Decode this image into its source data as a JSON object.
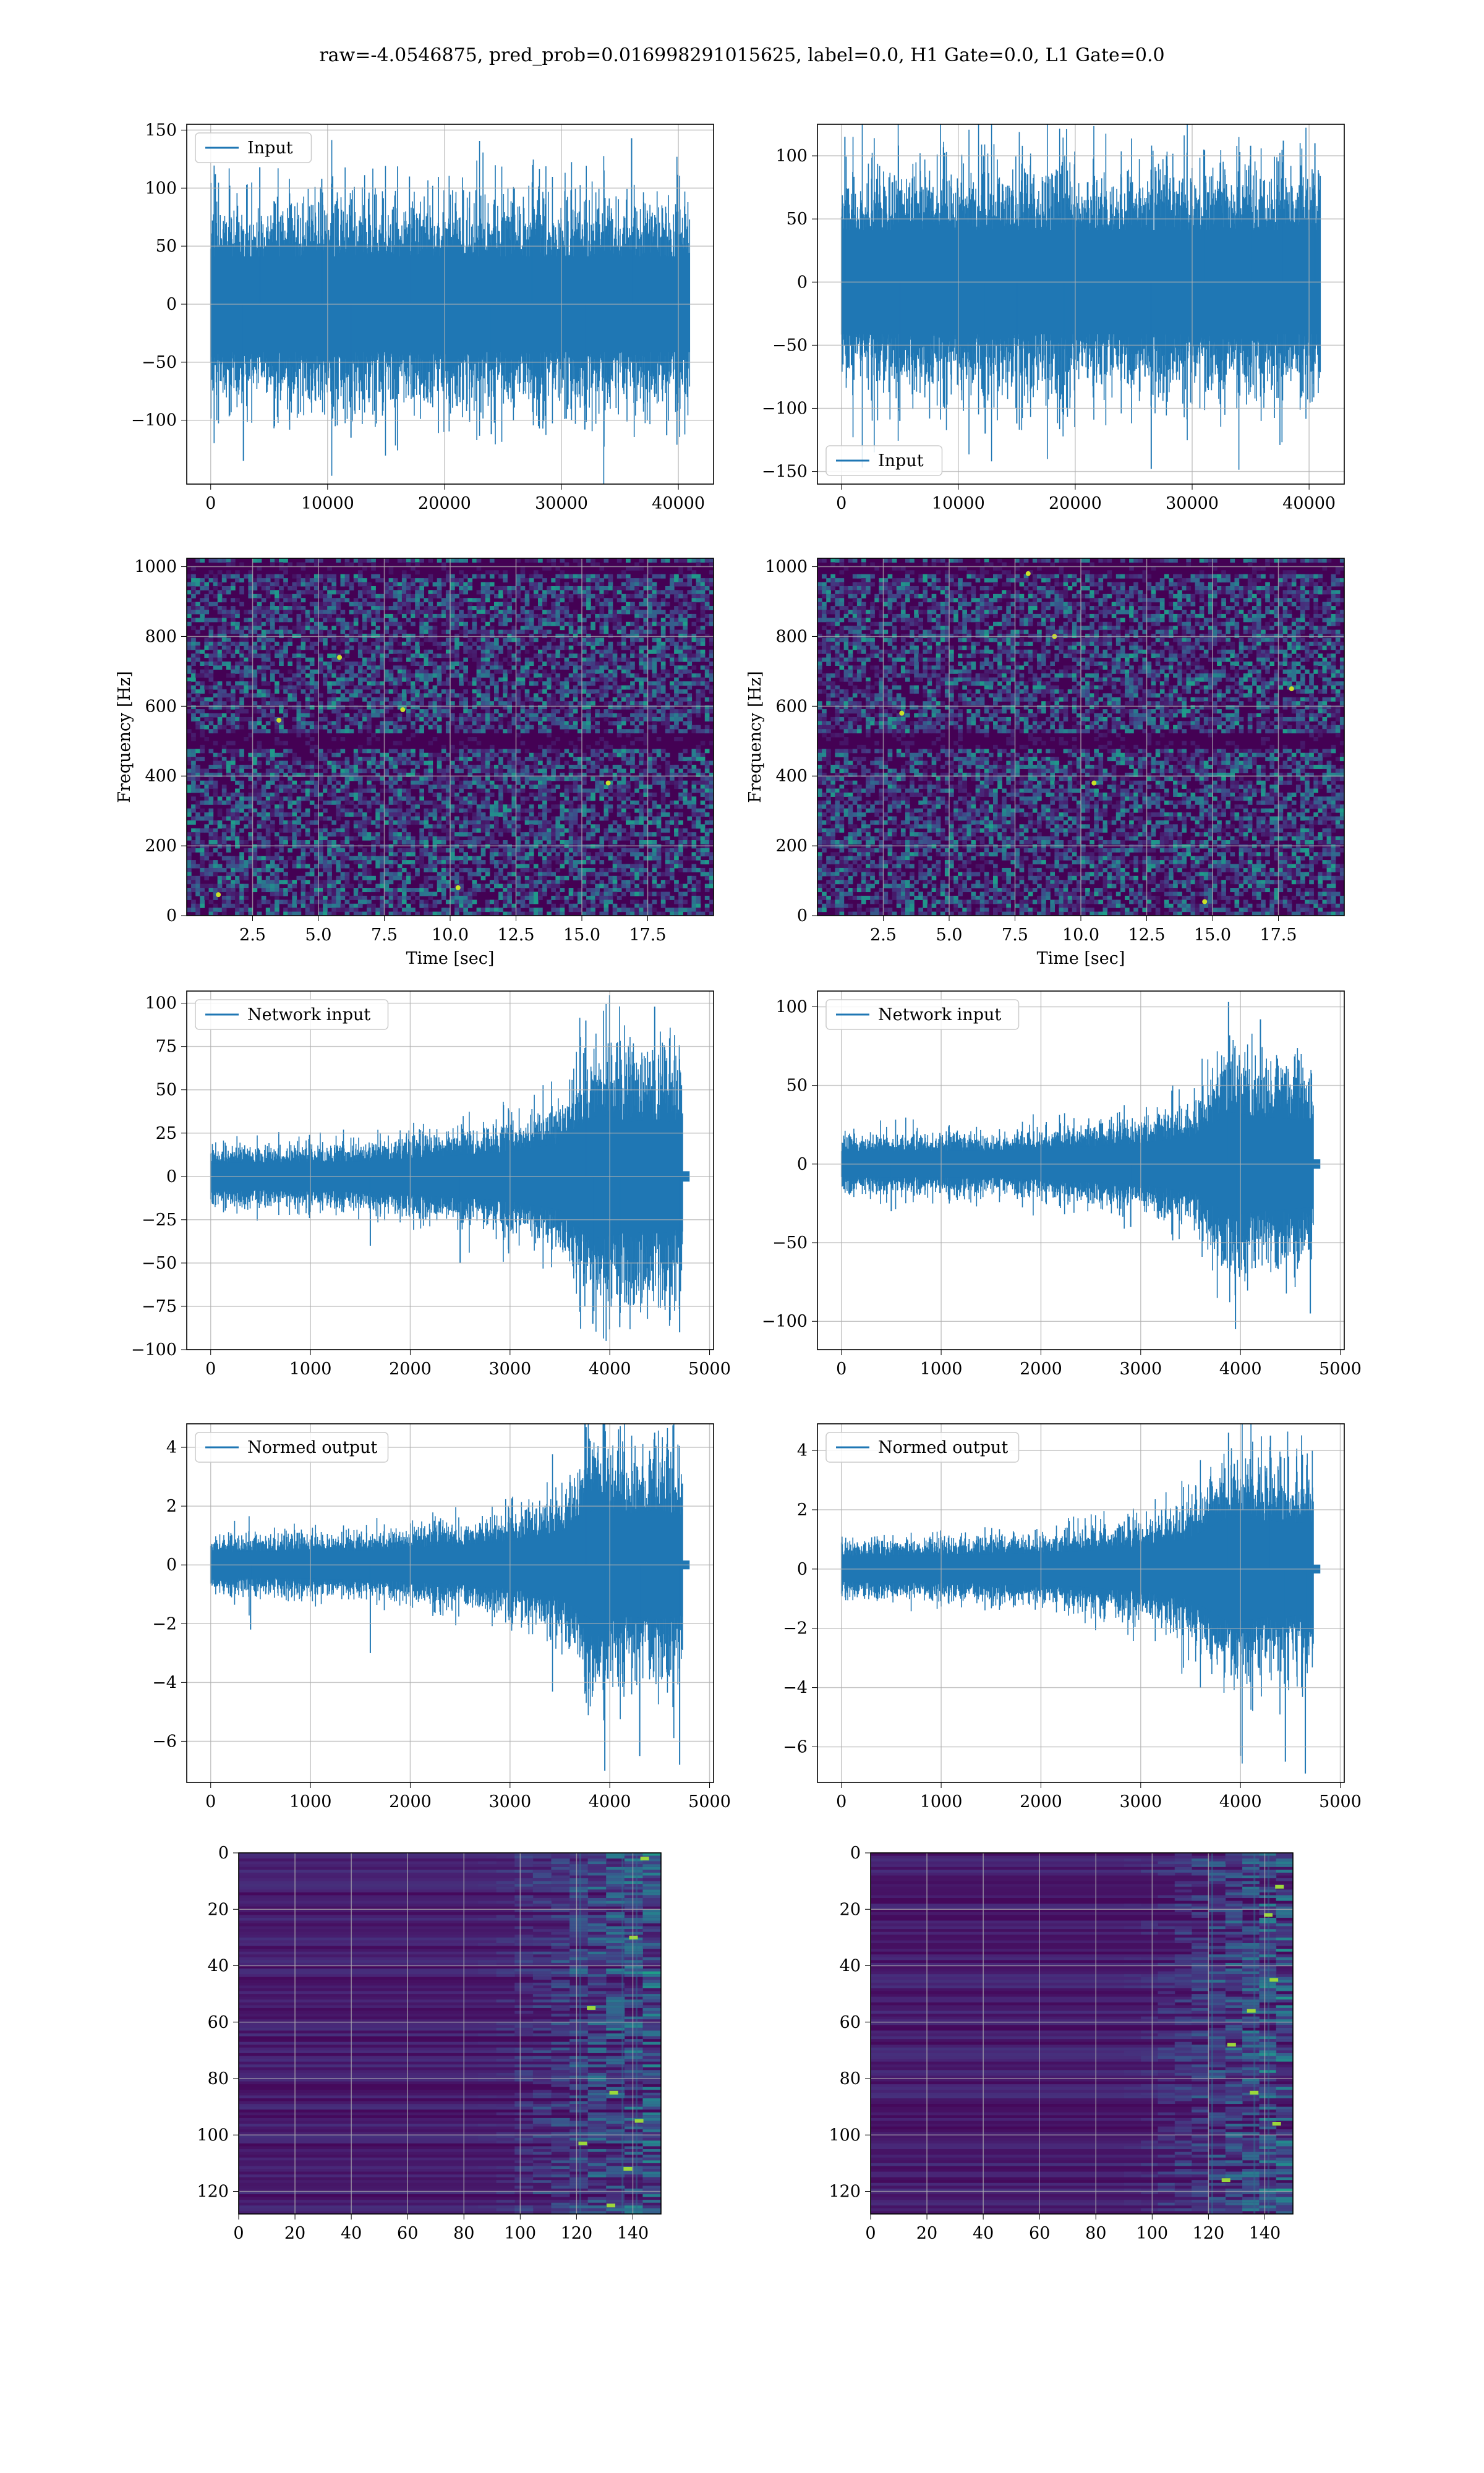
{
  "figure": {
    "suptitle": "raw=-4.0546875, pred_prob=0.016998291015625, label=0.0, H1 Gate=0.0, L1 Gate=0.0"
  },
  "colors": {
    "line": "#1f77b4",
    "grid": "#b0b0b0",
    "viridis_low": "#440154",
    "viridis_mid": "#21918c",
    "viridis_high": "#fde725"
  },
  "chart_data": [
    {
      "id": "input-h1",
      "type": "line",
      "title": "",
      "xlabel": "",
      "ylabel": "",
      "legend": {
        "label": "Input",
        "loc": "upper left"
      },
      "xlim": [
        -2048,
        43008
      ],
      "ylim": [
        -155,
        155
      ],
      "xticks": [
        0,
        10000,
        20000,
        30000,
        40000
      ],
      "xticklabels": [
        "0",
        "10000",
        "20000",
        "30000",
        "40000"
      ],
      "yticks": [
        -100,
        -50,
        0,
        50,
        100,
        150
      ],
      "yticklabels": [
        "−100",
        "−50",
        "0",
        "50",
        "100",
        "150"
      ],
      "grid": true,
      "signal": {
        "x_range": [
          0,
          40960
        ],
        "envelope": [
          [
            0,
            75
          ],
          [
            40960,
            75
          ]
        ],
        "typical_max": 70,
        "typical_min": -70,
        "spikes": [
          [
            400,
            112
          ],
          [
            2800,
            -135
          ],
          [
            4200,
            118
          ],
          [
            9500,
            108
          ],
          [
            12000,
            -115
          ],
          [
            17000,
            110
          ],
          [
            24000,
            -112
          ],
          [
            27500,
            105
          ],
          [
            32000,
            -108
          ],
          [
            36000,
            143
          ],
          [
            39000,
            -113
          ]
        ]
      }
    },
    {
      "id": "input-l1",
      "type": "line",
      "title": "",
      "xlabel": "",
      "ylabel": "",
      "legend": {
        "label": "Input",
        "loc": "lower left"
      },
      "xlim": [
        -2048,
        43008
      ],
      "ylim": [
        -160,
        125
      ],
      "xticks": [
        0,
        10000,
        20000,
        30000,
        40000
      ],
      "xticklabels": [
        "0",
        "10000",
        "20000",
        "30000",
        "40000"
      ],
      "yticks": [
        -150,
        -100,
        -50,
        0,
        50,
        100
      ],
      "yticklabels": [
        "−150",
        "−100",
        "−50",
        "0",
        "50",
        "100"
      ],
      "grid": true,
      "signal": {
        "x_range": [
          0,
          40960
        ],
        "envelope": [
          [
            0,
            75
          ],
          [
            40960,
            75
          ]
        ],
        "typical_max": 65,
        "typical_min": -65,
        "spikes": [
          [
            300,
            115
          ],
          [
            5000,
            -110
          ],
          [
            12300,
            -120
          ],
          [
            15000,
            -112
          ],
          [
            19000,
            -105
          ],
          [
            26500,
            -148
          ],
          [
            31000,
            105
          ],
          [
            35000,
            108
          ],
          [
            37800,
            112
          ],
          [
            40500,
            110
          ]
        ]
      }
    },
    {
      "id": "spec-h1",
      "type": "heatmap",
      "title": "",
      "xlabel": "Time [sec]",
      "ylabel": "Frequency [Hz]",
      "colormap": "viridis",
      "xlim": [
        0,
        20
      ],
      "ylim": [
        0,
        1024
      ],
      "xticks": [
        2.5,
        5.0,
        7.5,
        10.0,
        12.5,
        15.0,
        17.5
      ],
      "xticklabels": [
        "2.5",
        "5.0",
        "7.5",
        "10.0",
        "12.5",
        "15.0",
        "17.5"
      ],
      "yticks": [
        0,
        200,
        400,
        600,
        800,
        1000
      ],
      "yticklabels": [
        "0",
        "200",
        "400",
        "600",
        "800",
        "1000"
      ],
      "grid": true,
      "dark_bands_hz": [
        500,
        1000
      ],
      "hot_spots": [
        [
          5.8,
          740
        ],
        [
          8.2,
          590
        ],
        [
          10.3,
          80
        ],
        [
          1.2,
          60
        ],
        [
          3.5,
          560
        ],
        [
          16.0,
          380
        ]
      ]
    },
    {
      "id": "spec-l1",
      "type": "heatmap",
      "title": "",
      "xlabel": "Time [sec]",
      "ylabel": "Frequency [Hz]",
      "colormap": "viridis",
      "xlim": [
        0,
        20
      ],
      "ylim": [
        0,
        1024
      ],
      "xticks": [
        2.5,
        5.0,
        7.5,
        10.0,
        12.5,
        15.0,
        17.5
      ],
      "xticklabels": [
        "2.5",
        "5.0",
        "7.5",
        "10.0",
        "12.5",
        "15.0",
        "17.5"
      ],
      "yticks": [
        0,
        200,
        400,
        600,
        800,
        1000
      ],
      "yticklabels": [
        "0",
        "200",
        "400",
        "600",
        "800",
        "1000"
      ],
      "grid": true,
      "dark_bands_hz": [
        500,
        1000
      ],
      "hot_spots": [
        [
          8.0,
          980
        ],
        [
          9.0,
          800
        ],
        [
          10.5,
          380
        ],
        [
          14.7,
          40
        ],
        [
          18.0,
          650
        ],
        [
          3.2,
          580
        ]
      ]
    },
    {
      "id": "netin-h1",
      "type": "line",
      "title": "",
      "xlabel": "",
      "ylabel": "",
      "legend": {
        "label": "Network input",
        "loc": "upper left"
      },
      "xlim": [
        -240,
        5040
      ],
      "ylim": [
        -100,
        107
      ],
      "xticks": [
        0,
        1000,
        2000,
        3000,
        4000,
        5000
      ],
      "xticklabels": [
        "0",
        "1000",
        "2000",
        "3000",
        "4000",
        "5000"
      ],
      "yticks": [
        -100,
        -75,
        -50,
        -25,
        0,
        25,
        50,
        75,
        100
      ],
      "yticklabels": [
        "−100",
        "−75",
        "−50",
        "−25",
        "0",
        "25",
        "50",
        "75",
        "100"
      ],
      "grid": true,
      "signal": {
        "x_range": [
          0,
          4730
        ],
        "tail_until": 4800,
        "tail_amp": 3,
        "envelope": [
          [
            0,
            14
          ],
          [
            1500,
            16
          ],
          [
            2400,
            22
          ],
          [
            3000,
            26
          ],
          [
            3500,
            35
          ],
          [
            3700,
            55
          ],
          [
            3900,
            65
          ],
          [
            4200,
            58
          ],
          [
            4500,
            60
          ],
          [
            4730,
            55
          ]
        ],
        "spikes": [
          [
            1600,
            -40
          ],
          [
            2500,
            -50
          ],
          [
            3760,
            90
          ],
          [
            3830,
            -85
          ],
          [
            4100,
            -87
          ],
          [
            4450,
            98
          ],
          [
            4700,
            -90
          ]
        ]
      }
    },
    {
      "id": "netin-l1",
      "type": "line",
      "title": "",
      "xlabel": "",
      "ylabel": "",
      "legend": {
        "label": "Network input",
        "loc": "upper left"
      },
      "xlim": [
        -240,
        5040
      ],
      "ylim": [
        -118,
        110
      ],
      "xticks": [
        0,
        1000,
        2000,
        3000,
        4000,
        5000
      ],
      "xticklabels": [
        "0",
        "1000",
        "2000",
        "3000",
        "4000",
        "5000"
      ],
      "yticks": [
        -100,
        -50,
        0,
        50,
        100
      ],
      "yticklabels": [
        "−100",
        "−50",
        "0",
        "50",
        "100"
      ],
      "grid": true,
      "signal": {
        "x_range": [
          0,
          4730
        ],
        "tail_until": 4800,
        "tail_amp": 3,
        "envelope": [
          [
            0,
            15
          ],
          [
            1500,
            16
          ],
          [
            2400,
            20
          ],
          [
            3000,
            24
          ],
          [
            3500,
            32
          ],
          [
            3700,
            45
          ],
          [
            3900,
            60
          ],
          [
            4200,
            55
          ],
          [
            4500,
            52
          ],
          [
            4730,
            50
          ]
        ],
        "spikes": [
          [
            500,
            -30
          ],
          [
            2900,
            -40
          ],
          [
            3880,
            103
          ],
          [
            3950,
            -105
          ],
          [
            4200,
            92
          ],
          [
            4700,
            -95
          ]
        ]
      }
    },
    {
      "id": "normed-h1",
      "type": "line",
      "title": "",
      "xlabel": "",
      "ylabel": "",
      "legend": {
        "label": "Normed output",
        "loc": "upper left"
      },
      "xlim": [
        -240,
        5040
      ],
      "ylim": [
        -7.4,
        4.8
      ],
      "xticks": [
        0,
        1000,
        2000,
        3000,
        4000,
        5000
      ],
      "xticklabels": [
        "0",
        "1000",
        "2000",
        "3000",
        "4000",
        "5000"
      ],
      "yticks": [
        -6,
        -4,
        -2,
        0,
        2,
        4
      ],
      "yticklabels": [
        "−6",
        "−4",
        "−2",
        "0",
        "2",
        "4"
      ],
      "grid": true,
      "signal": {
        "x_range": [
          0,
          4730
        ],
        "tail_until": 4800,
        "tail_amp": 0.15,
        "envelope": [
          [
            0,
            0.8
          ],
          [
            1500,
            0.9
          ],
          [
            2400,
            1.2
          ],
          [
            3000,
            1.5
          ],
          [
            3500,
            2.0
          ],
          [
            3700,
            3.0
          ],
          [
            3900,
            3.6
          ],
          [
            4200,
            3.2
          ],
          [
            4500,
            3.4
          ],
          [
            4730,
            3.1
          ]
        ],
        "spikes": [
          [
            400,
            -2.2
          ],
          [
            1600,
            -3.0
          ],
          [
            3760,
            4.4
          ],
          [
            3950,
            -7.0
          ],
          [
            4300,
            -6.5
          ],
          [
            4450,
            4.5
          ],
          [
            4700,
            -6.8
          ]
        ]
      }
    },
    {
      "id": "normed-l1",
      "type": "line",
      "title": "",
      "xlabel": "",
      "ylabel": "",
      "legend": {
        "label": "Normed output",
        "loc": "upper left"
      },
      "xlim": [
        -240,
        5040
      ],
      "ylim": [
        -7.2,
        4.9
      ],
      "xticks": [
        0,
        1000,
        2000,
        3000,
        4000,
        5000
      ],
      "xticklabels": [
        "0",
        "1000",
        "2000",
        "3000",
        "4000",
        "5000"
      ],
      "yticks": [
        -6,
        -4,
        -2,
        0,
        2,
        4
      ],
      "yticklabels": [
        "−6",
        "−4",
        "−2",
        "0",
        "2",
        "4"
      ],
      "grid": true,
      "signal": {
        "x_range": [
          0,
          4730
        ],
        "tail_until": 4800,
        "tail_amp": 0.15,
        "envelope": [
          [
            0,
            0.8
          ],
          [
            1500,
            0.9
          ],
          [
            2400,
            1.1
          ],
          [
            3000,
            1.4
          ],
          [
            3500,
            1.9
          ],
          [
            3700,
            2.6
          ],
          [
            3900,
            3.3
          ],
          [
            4200,
            3.0
          ],
          [
            4500,
            2.9
          ],
          [
            4730,
            2.8
          ]
        ],
        "spikes": [
          [
            3880,
            4.6
          ],
          [
            4000,
            -6.3
          ],
          [
            4300,
            4.5
          ],
          [
            4450,
            -6.5
          ],
          [
            4650,
            -6.9
          ]
        ]
      }
    },
    {
      "id": "image-h1",
      "type": "heatmap",
      "title": "",
      "xlabel": "",
      "ylabel": "",
      "colormap": "viridis",
      "xlim": [
        0,
        150
      ],
      "ylim": [
        128,
        0
      ],
      "xticks": [
        0,
        20,
        40,
        60,
        80,
        100,
        120,
        140
      ],
      "xticklabels": [
        "0",
        "20",
        "40",
        "60",
        "80",
        "100",
        "120",
        "140"
      ],
      "yticks": [
        0,
        20,
        40,
        60,
        80,
        100,
        120
      ],
      "yticklabels": [
        "0",
        "20",
        "40",
        "60",
        "80",
        "100",
        "120"
      ],
      "grid": true,
      "activity_onset_col": 85,
      "hot_spots": [
        [
          144,
          2
        ],
        [
          140,
          30
        ],
        [
          125,
          55
        ],
        [
          133,
          85
        ],
        [
          142,
          95
        ],
        [
          122,
          103
        ],
        [
          138,
          112
        ],
        [
          132,
          125
        ]
      ]
    },
    {
      "id": "image-l1",
      "type": "heatmap",
      "title": "",
      "xlabel": "",
      "ylabel": "",
      "colormap": "viridis",
      "xlim": [
        0,
        150
      ],
      "ylim": [
        128,
        0
      ],
      "xticks": [
        0,
        20,
        40,
        60,
        80,
        100,
        120,
        140
      ],
      "xticklabels": [
        "0",
        "20",
        "40",
        "60",
        "80",
        "100",
        "120",
        "140"
      ],
      "yticks": [
        0,
        20,
        40,
        60,
        80,
        100,
        120
      ],
      "yticklabels": [
        "0",
        "20",
        "40",
        "60",
        "80",
        "100",
        "120"
      ],
      "grid": true,
      "activity_onset_col": 90,
      "hot_spots": [
        [
          145,
          12
        ],
        [
          141,
          22
        ],
        [
          143,
          45
        ],
        [
          135,
          56
        ],
        [
          128,
          68
        ],
        [
          136,
          85
        ],
        [
          144,
          96
        ],
        [
          126,
          116
        ]
      ]
    }
  ]
}
